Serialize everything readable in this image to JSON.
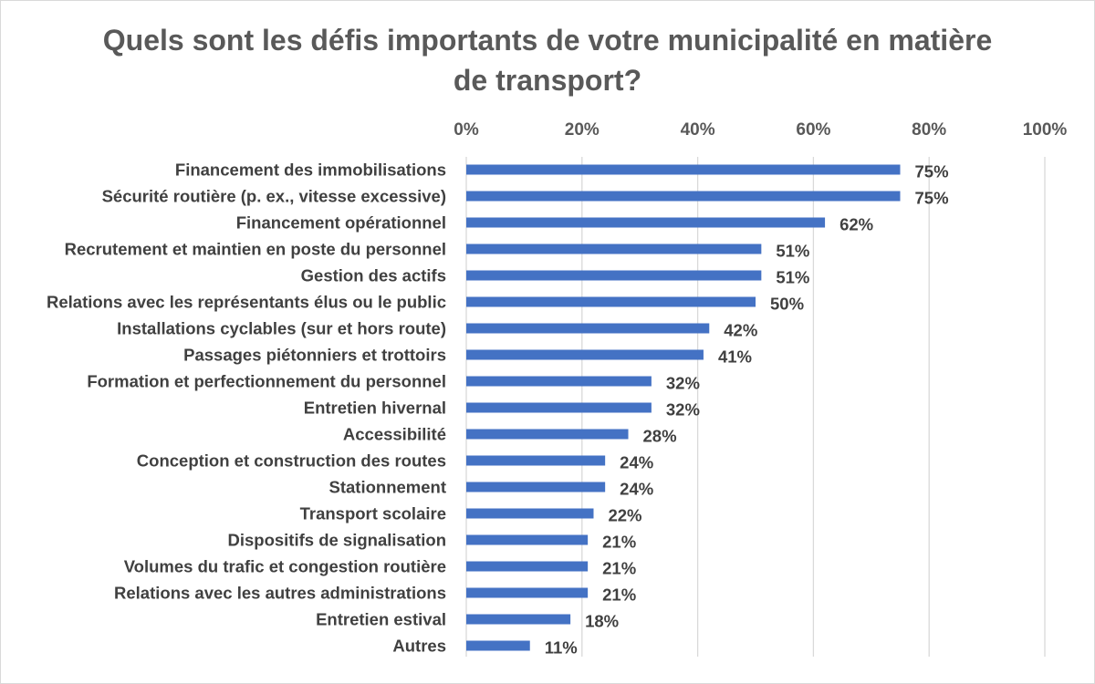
{
  "chart_data": {
    "type": "bar",
    "orientation": "horizontal",
    "title": "Quels sont les défis importants de votre municipalité en matière de transport?",
    "xlim": [
      0,
      100
    ],
    "x_ticks": [
      "0%",
      "20%",
      "40%",
      "60%",
      "80%",
      "100%"
    ],
    "x_axis_position": "top",
    "grid": true,
    "bar_color": "#4472c4",
    "categories": [
      "Financement des immobilisations",
      "Sécurité routière (p. ex., vitesse excessive)",
      "Financement opérationnel",
      "Recrutement et maintien en poste du personnel",
      "Gestion des actifs",
      "Relations avec les représentants élus ou le public",
      "Installations cyclables (sur et hors route)",
      "Passages piétonniers et trottoirs",
      "Formation et perfectionnement du personnel",
      "Entretien hivernal",
      "Accessibilité",
      "Conception et construction des routes",
      "Stationnement",
      "Transport scolaire",
      "Dispositifs de signalisation",
      "Volumes du trafic et congestion routière",
      "Relations avec les autres administrations",
      "Entretien estival",
      "Autres"
    ],
    "values": [
      75,
      75,
      62,
      51,
      51,
      50,
      42,
      41,
      32,
      32,
      28,
      24,
      24,
      22,
      21,
      21,
      21,
      18,
      11
    ],
    "data_labels": [
      "75%",
      "75%",
      "62%",
      "51%",
      "51%",
      "50%",
      "42%",
      "41%",
      "32%",
      "32%",
      "28%",
      "24%",
      "24%",
      "22%",
      "21%",
      "21%",
      "21%",
      "18%",
      "11%"
    ]
  }
}
